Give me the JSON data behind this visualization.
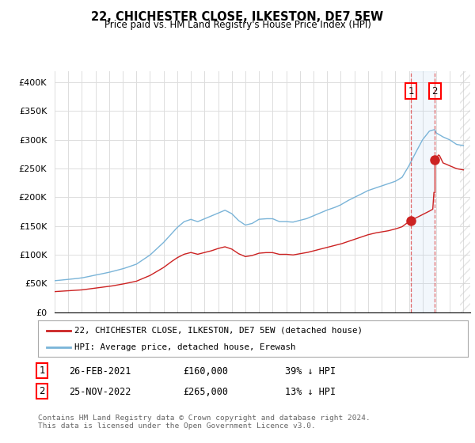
{
  "title": "22, CHICHESTER CLOSE, ILKESTON, DE7 5EW",
  "subtitle": "Price paid vs. HM Land Registry's House Price Index (HPI)",
  "ylim": [
    0,
    420000
  ],
  "yticks": [
    0,
    50000,
    100000,
    150000,
    200000,
    250000,
    300000,
    350000,
    400000
  ],
  "ytick_labels": [
    "£0",
    "£50K",
    "£100K",
    "£150K",
    "£200K",
    "£250K",
    "£300K",
    "£350K",
    "£400K"
  ],
  "hpi_color": "#7ab4d8",
  "price_color": "#cc2222",
  "marker_color": "#cc2222",
  "vline_color": "#dd4444",
  "marker1_x": 2021.15,
  "marker1_y": 160000,
  "marker2_x": 2022.9,
  "marker2_y": 265000,
  "xlim_left": 1995.0,
  "xlim_right": 2025.5,
  "legend_label_red": "22, CHICHESTER CLOSE, ILKESTON, DE7 5EW (detached house)",
  "legend_label_blue": "HPI: Average price, detached house, Erewash",
  "transaction1_date": "26-FEB-2021",
  "transaction1_price": "£160,000",
  "transaction1_hpi": "39% ↓ HPI",
  "transaction2_date": "25-NOV-2022",
  "transaction2_price": "£265,000",
  "transaction2_hpi": "13% ↓ HPI",
  "footer": "Contains HM Land Registry data © Crown copyright and database right 2024.\nThis data is licensed under the Open Government Licence v3.0.",
  "background_color": "#ffffff",
  "grid_color": "#dddddd"
}
